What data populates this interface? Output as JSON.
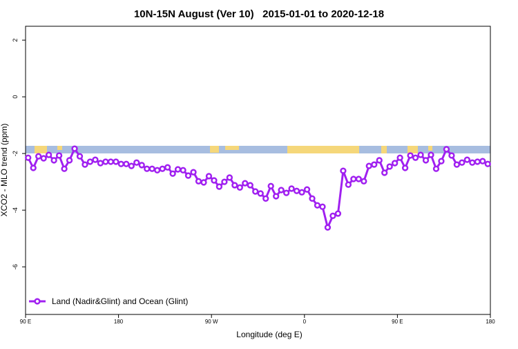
{
  "chart_data": {
    "type": "line",
    "title": "10N-15N August (Ver 10)   2015-01-01 to 2020-12-18",
    "x_label": "Longitude (deg E)",
    "y_label": "XCO2 - MLO trend (ppm)",
    "x": [
      92.5,
      97.5,
      102.5,
      107.5,
      112.5,
      117.5,
      122.5,
      127.5,
      132.5,
      137.5,
      142.5,
      147.5,
      152.5,
      157.5,
      162.5,
      167.5,
      172.5,
      177.5,
      182.5,
      187.5,
      192.5,
      197.5,
      202.5,
      207.5,
      212.5,
      217.5,
      222.5,
      227.5,
      232.5,
      237.5,
      242.5,
      247.5,
      252.5,
      257.5,
      262.5,
      267.5,
      272.5,
      277.5,
      282.5,
      287.5,
      292.5,
      297.5,
      302.5,
      307.5,
      312.5,
      317.5,
      322.5,
      327.5,
      332.5,
      337.5,
      342.5,
      347.5,
      352.5,
      357.5,
      362.5,
      367.5,
      372.5,
      377.5,
      382.5,
      387.5,
      392.5,
      397.5,
      402.5,
      407.5,
      412.5,
      417.5,
      422.5,
      427.5,
      432.5,
      437.5,
      442.5,
      447.5,
      452.5,
      457.5,
      462.5,
      467.5,
      472.5,
      477.5,
      482.5,
      487.5,
      492.5,
      497.5,
      502.5,
      507.5,
      512.5,
      517.5,
      522.5,
      527.5,
      532.5,
      537.5
    ],
    "series": [
      {
        "name": "Land (Nadir&Glint) and Ocean (Glint)",
        "color": "#a020f0",
        "values": [
          -2.15,
          -2.51,
          -2.1,
          -2.17,
          -2.05,
          -2.24,
          -2.07,
          -2.54,
          -2.24,
          -1.83,
          -2.1,
          -2.39,
          -2.29,
          -2.22,
          -2.34,
          -2.29,
          -2.29,
          -2.29,
          -2.37,
          -2.37,
          -2.44,
          -2.32,
          -2.41,
          -2.54,
          -2.54,
          -2.59,
          -2.54,
          -2.49,
          -2.71,
          -2.56,
          -2.59,
          -2.78,
          -2.66,
          -2.98,
          -3.02,
          -2.8,
          -2.95,
          -3.17,
          -3.0,
          -2.85,
          -3.12,
          -3.2,
          -3.05,
          -3.12,
          -3.34,
          -3.41,
          -3.59,
          -3.15,
          -3.51,
          -3.29,
          -3.39,
          -3.24,
          -3.32,
          -3.37,
          -3.27,
          -3.59,
          -3.83,
          -3.88,
          -4.61,
          -4.2,
          -4.12,
          -2.61,
          -3.1,
          -2.9,
          -2.9,
          -2.98,
          -2.44,
          -2.39,
          -2.24,
          -2.68,
          -2.46,
          -2.34,
          -2.15,
          -2.51,
          -2.07,
          -2.15,
          -2.05,
          -2.24,
          -2.05,
          -2.54,
          -2.27,
          -1.85,
          -2.07,
          -2.39,
          -2.32,
          -2.22,
          -2.32,
          -2.29,
          -2.27,
          -2.37
        ]
      }
    ],
    "xlim": [
      90,
      540
    ],
    "xticks": [
      {
        "value": 90,
        "label": "90 E"
      },
      {
        "value": 180,
        "label": "180"
      },
      {
        "value": 270,
        "label": "90 W"
      },
      {
        "value": 360,
        "label": "0"
      },
      {
        "value": 450,
        "label": "90 E"
      },
      {
        "value": 540,
        "label": "180"
      }
    ],
    "ylim": [
      -7.68,
      2.49
    ],
    "yticks": [
      -6,
      -4,
      -2,
      0,
      2
    ],
    "legend": "bottom-left"
  }
}
